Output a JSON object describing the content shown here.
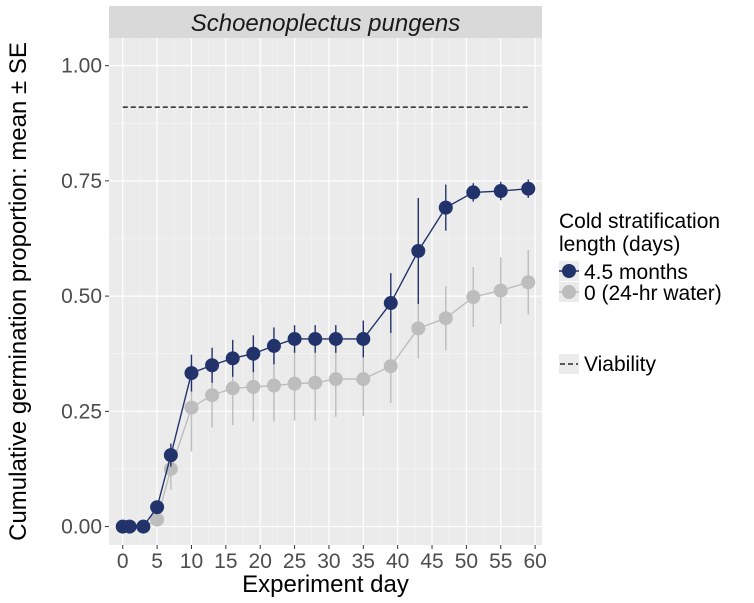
{
  "chart_data": {
    "type": "line",
    "title": "Schoenoplectus pungens",
    "xlabel": "Experiment day",
    "ylabel": "Cumulative germination proportion: mean ± SE",
    "xlim": [
      -2,
      61
    ],
    "ylim": [
      -0.04,
      1.06
    ],
    "x_ticks": [
      0,
      5,
      10,
      15,
      20,
      25,
      30,
      35,
      40,
      45,
      50,
      55,
      60
    ],
    "y_ticks": [
      0.0,
      0.25,
      0.5,
      0.75,
      1.0
    ],
    "y_tick_labels": [
      "0.00",
      "0.25",
      "0.50",
      "0.75",
      "1.00"
    ],
    "grid": true,
    "legend_title_lines": [
      "Cold stratification",
      "length (days)"
    ],
    "legend_position": "right",
    "viability": {
      "label": "Viability",
      "value": 0.91,
      "x_start": 0,
      "x_end": 59
    },
    "series": [
      {
        "name": "0 (24-hr water)",
        "color": "#bdbdbd",
        "x": [
          0,
          1,
          3,
          5,
          7,
          10,
          13,
          16,
          19,
          22,
          25,
          28,
          31,
          35,
          39,
          43,
          47,
          51,
          55,
          59
        ],
        "values": [
          0,
          0,
          0,
          0.015,
          0.125,
          0.258,
          0.285,
          0.3,
          0.303,
          0.306,
          0.31,
          0.312,
          0.32,
          0.32,
          0.348,
          0.43,
          0.452,
          0.498,
          0.512,
          0.53
        ],
        "se": [
          0,
          0,
          0,
          0.005,
          0.045,
          0.095,
          0.07,
          0.08,
          0.075,
          0.078,
          0.08,
          0.082,
          0.082,
          0.08,
          0.08,
          0.065,
          0.07,
          0.065,
          0.072,
          0.07
        ]
      },
      {
        "name": "4.5 months",
        "color": "#22336b",
        "x": [
          0,
          1,
          3,
          5,
          7,
          10,
          13,
          16,
          19,
          22,
          25,
          28,
          31,
          35,
          39,
          43,
          47,
          51,
          55,
          59
        ],
        "values": [
          0,
          0,
          0,
          0.042,
          0.155,
          0.333,
          0.35,
          0.365,
          0.375,
          0.392,
          0.407,
          0.407,
          0.407,
          0.407,
          0.485,
          0.598,
          0.692,
          0.725,
          0.728,
          0.733
        ],
        "se": [
          0,
          0,
          0,
          0.012,
          0.025,
          0.04,
          0.038,
          0.04,
          0.04,
          0.04,
          0.03,
          0.03,
          0.03,
          0.04,
          0.065,
          0.115,
          0.05,
          0.02,
          0.02,
          0.02
        ]
      }
    ]
  }
}
